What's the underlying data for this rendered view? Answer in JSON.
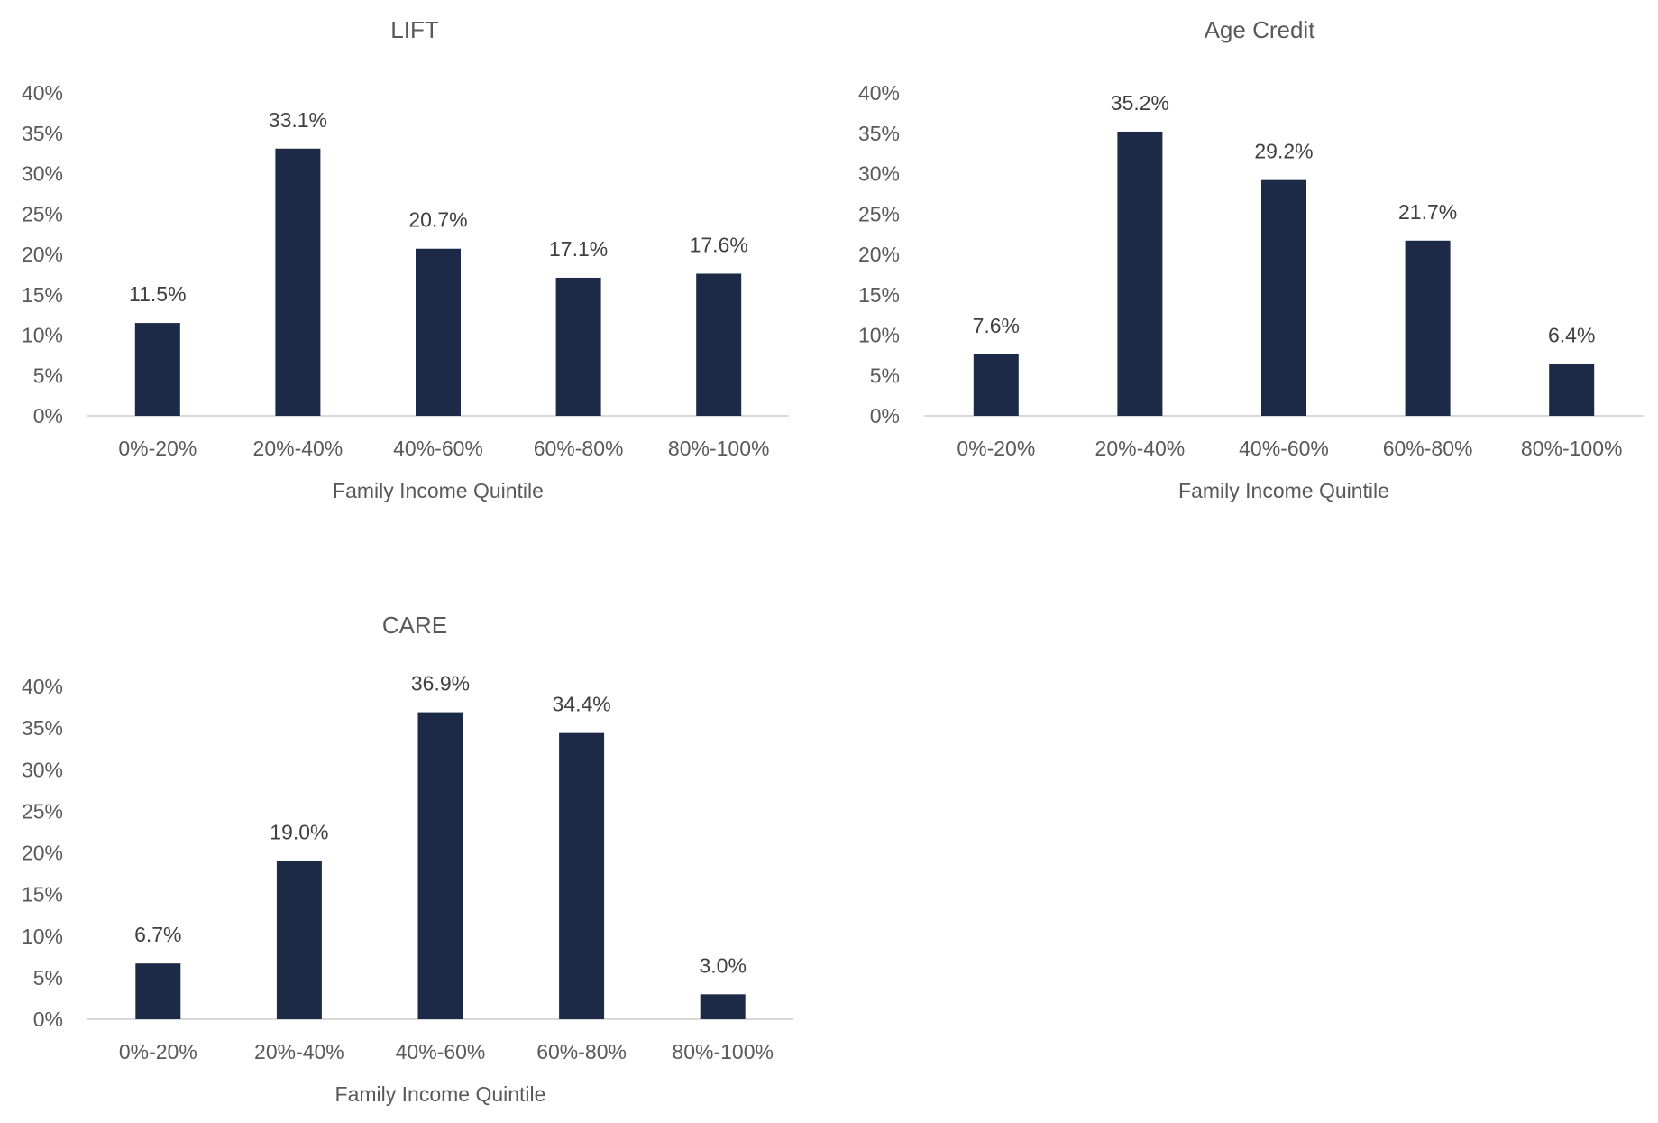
{
  "chart_data": [
    {
      "type": "bar",
      "title": "LIFT",
      "xlabel": "Family Income Quintile",
      "ylabel": "",
      "categories": [
        "0%-20%",
        "20%-40%",
        "40%-60%",
        "60%-80%",
        "80%-100%"
      ],
      "values": [
        11.5,
        33.1,
        20.7,
        17.1,
        17.6
      ],
      "data_labels": [
        "11.5%",
        "33.1%",
        "20.7%",
        "17.1%",
        "17.6%"
      ],
      "ylim": [
        0,
        40
      ],
      "yticks": [
        "0%",
        "5%",
        "10%",
        "15%",
        "20%",
        "25%",
        "30%",
        "35%",
        "40%"
      ],
      "grid": false,
      "legend": "none",
      "bar_color": "#1c2a48"
    },
    {
      "type": "bar",
      "title": "Age Credit",
      "xlabel": "Family Income Quintile",
      "ylabel": "",
      "categories": [
        "0%-20%",
        "20%-40%",
        "40%-60%",
        "60%-80%",
        "80%-100%"
      ],
      "values": [
        7.6,
        35.2,
        29.2,
        21.7,
        6.4
      ],
      "data_labels": [
        "7.6%",
        "35.2%",
        "29.2%",
        "21.7%",
        "6.4%"
      ],
      "ylim": [
        0,
        40
      ],
      "yticks": [
        "0%",
        "5%",
        "10%",
        "15%",
        "20%",
        "25%",
        "30%",
        "35%",
        "40%"
      ],
      "grid": false,
      "legend": "none",
      "bar_color": "#1c2a48"
    },
    {
      "type": "bar",
      "title": "CARE",
      "xlabel": "Family Income Quintile",
      "ylabel": "",
      "categories": [
        "0%-20%",
        "20%-40%",
        "40%-60%",
        "60%-80%",
        "80%-100%"
      ],
      "values": [
        6.7,
        19.0,
        36.9,
        34.4,
        3.0
      ],
      "data_labels": [
        "6.7%",
        "19.0%",
        "36.9%",
        "34.4%",
        "3.0%"
      ],
      "ylim": [
        0,
        40
      ],
      "yticks": [
        "0%",
        "5%",
        "10%",
        "15%",
        "20%",
        "25%",
        "30%",
        "35%",
        "40%"
      ],
      "grid": false,
      "legend": "none",
      "bar_color": "#1c2a48"
    }
  ]
}
